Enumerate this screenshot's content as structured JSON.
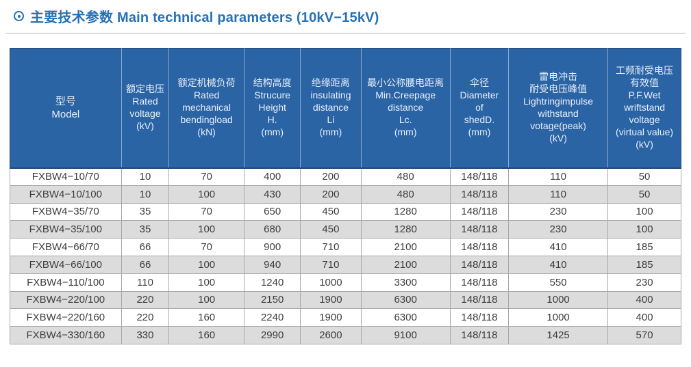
{
  "colors": {
    "title_accent": "#2471b5",
    "header_bg": "#2a64a5",
    "header_text": "#e9eefa",
    "header_edge": "#1c4574",
    "row_alt_bg": "#dcdcdc",
    "body_text": "#3d3d3d",
    "grid_border": "#a8a8a8"
  },
  "header": {
    "title": "主要技术参数 Main technical parameters (10kV−15kV)",
    "title_icon": "circled-dot-icon"
  },
  "table": {
    "columns": [
      {
        "id": "model",
        "lines": [
          "型号",
          "Model"
        ]
      },
      {
        "id": "rated-voltage",
        "lines": [
          "额定电压",
          "Rated",
          "voltage",
          "(kV)"
        ]
      },
      {
        "id": "rated-mechanical-bending-load",
        "lines": [
          "额定机械负荷",
          "Rated",
          "mechanical",
          "bendingload",
          "(kN)"
        ]
      },
      {
        "id": "structure-height",
        "lines": [
          "结构高度",
          "Strucure",
          "Height",
          "H.",
          "(mm)"
        ]
      },
      {
        "id": "insulating-distance",
        "lines": [
          "绝缘距离",
          "insulating",
          "distance",
          "Li",
          "(mm)"
        ]
      },
      {
        "id": "min-creepage-distance",
        "lines": [
          "最小公称腰电距离",
          "Min.Creepage",
          "distance",
          "Lc.",
          "(mm)"
        ]
      },
      {
        "id": "shed-diameter",
        "lines": [
          "伞径",
          "Diameter",
          "of",
          "shedD.",
          "(mm)"
        ]
      },
      {
        "id": "lightning-impulse-withstand-voltage",
        "lines": [
          "雷电冲击",
          "耐受电压峰值",
          "Lightringimpulse",
          "withstand",
          "votage(peak)",
          "(kV)"
        ]
      },
      {
        "id": "power-frequency-withstand-voltage",
        "lines": [
          "工频耐受电压",
          "有效值",
          "P.F.Wet",
          "wriftstand",
          "voltage",
          "(virtual value)",
          "(kV)"
        ]
      }
    ],
    "rows": [
      [
        "FXBW4−10/70",
        "10",
        "70",
        "400",
        "200",
        "480",
        "148/118",
        "110",
        "50"
      ],
      [
        "FXBW4−10/100",
        "10",
        "100",
        "430",
        "200",
        "480",
        "148/118",
        "110",
        "50"
      ],
      [
        "FXBW4−35/70",
        "35",
        "70",
        "650",
        "450",
        "1280",
        "148/118",
        "230",
        "100"
      ],
      [
        "FXBW4−35/100",
        "35",
        "100",
        "680",
        "450",
        "1280",
        "148/118",
        "230",
        "100"
      ],
      [
        "FXBW4−66/70",
        "66",
        "70",
        "900",
        "710",
        "2100",
        "148/118",
        "410",
        "185"
      ],
      [
        "FXBW4−66/100",
        "66",
        "100",
        "940",
        "710",
        "2100",
        "148/118",
        "410",
        "185"
      ],
      [
        "FXBW4−110/100",
        "110",
        "100",
        "1240",
        "1000",
        "3300",
        "148/118",
        "550",
        "230"
      ],
      [
        "FXBW4−220/100",
        "220",
        "100",
        "2150",
        "1900",
        "6300",
        "148/118",
        "1000",
        "400"
      ],
      [
        "FXBW4−220/160",
        "220",
        "160",
        "2240",
        "1900",
        "6300",
        "148/118",
        "1000",
        "400"
      ],
      [
        "FXBW4−330/160",
        "330",
        "160",
        "2990",
        "2600",
        "9100",
        "148/118",
        "1425",
        "570"
      ]
    ]
  }
}
